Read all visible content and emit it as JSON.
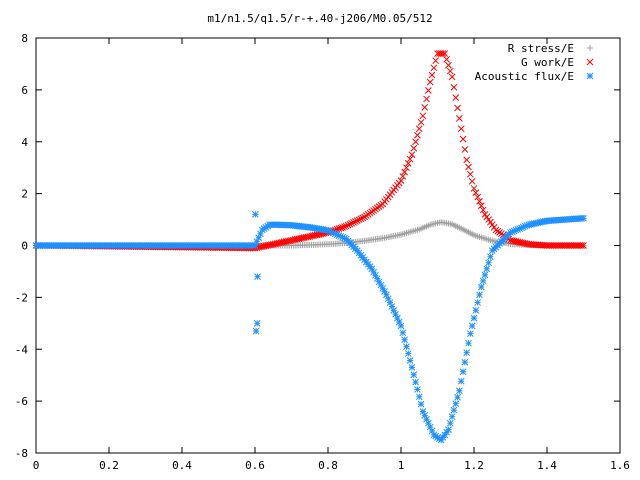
{
  "chart_data": {
    "type": "scatter",
    "title": "m1/n1.5/q1.5/r-+.40-j206/M0.05/512",
    "xlabel": "",
    "ylabel": "",
    "xlim": [
      0,
      1.6
    ],
    "ylim": [
      -8,
      8
    ],
    "x_ticks": [
      "0",
      "0.2",
      "0.4",
      "0.6",
      "0.8",
      "1",
      "1.2",
      "1.4",
      "1.6"
    ],
    "y_ticks": [
      "8",
      "6",
      "4",
      "2",
      "0",
      "-2",
      "-4",
      "-6",
      "-8"
    ],
    "legend_position": "top-right",
    "grid": false,
    "series": [
      {
        "name": "R stress/E",
        "marker": "+",
        "color": "#a0a0a0",
        "x": [
          0.0,
          0.6,
          0.65,
          0.7,
          0.75,
          0.8,
          0.85,
          0.9,
          0.95,
          1.0,
          1.05,
          1.08,
          1.11,
          1.14,
          1.17,
          1.2,
          1.25,
          1.3,
          1.35,
          1.4,
          1.45,
          1.5
        ],
        "y": [
          0.0,
          0.0,
          0.0,
          0.0,
          0.02,
          0.05,
          0.1,
          0.18,
          0.28,
          0.42,
          0.62,
          0.8,
          0.9,
          0.82,
          0.62,
          0.4,
          0.18,
          0.06,
          0.02,
          0.0,
          0.0,
          0.0
        ]
      },
      {
        "name": "G work/E",
        "marker": "x",
        "color": "#ff0000",
        "x": [
          0.0,
          0.6,
          0.65,
          0.7,
          0.75,
          0.8,
          0.85,
          0.9,
          0.95,
          1.0,
          1.03,
          1.06,
          1.08,
          1.1,
          1.12,
          1.14,
          1.16,
          1.18,
          1.2,
          1.23,
          1.26,
          1.3,
          1.35,
          1.4,
          1.45,
          1.5
        ],
        "y": [
          0.0,
          -0.1,
          0.05,
          0.2,
          0.35,
          0.5,
          0.75,
          1.1,
          1.6,
          2.5,
          3.5,
          5.0,
          6.3,
          7.4,
          7.4,
          6.5,
          4.9,
          3.3,
          2.2,
          1.2,
          0.6,
          0.2,
          0.05,
          0.0,
          0.0,
          0.0
        ]
      },
      {
        "name": "Acoustic flux/E",
        "marker": "*",
        "color": "#1e90ff",
        "x": [
          0.0,
          0.5,
          0.6,
          0.61,
          0.62,
          0.64,
          0.66,
          0.7,
          0.75,
          0.8,
          0.85,
          0.88,
          0.92,
          0.96,
          1.0,
          1.03,
          1.06,
          1.09,
          1.11,
          1.13,
          1.16,
          1.19,
          1.22,
          1.25,
          1.3,
          1.35,
          1.4,
          1.45,
          1.5
        ],
        "y": [
          0.0,
          0.0,
          0.0,
          0.3,
          0.6,
          0.8,
          0.8,
          0.78,
          0.7,
          0.58,
          0.25,
          -0.2,
          -0.9,
          -1.9,
          -3.1,
          -4.7,
          -6.4,
          -7.3,
          -7.5,
          -7.1,
          -5.6,
          -3.4,
          -1.6,
          -0.2,
          0.5,
          0.8,
          0.95,
          1.0,
          1.05
        ]
      },
      {
        "name": "",
        "marker": "*",
        "color": "#1e90ff",
        "x": [
          0.601,
          0.607,
          0.606,
          0.603
        ],
        "y": [
          1.2,
          -1.2,
          -3.0,
          -3.3
        ]
      }
    ]
  }
}
